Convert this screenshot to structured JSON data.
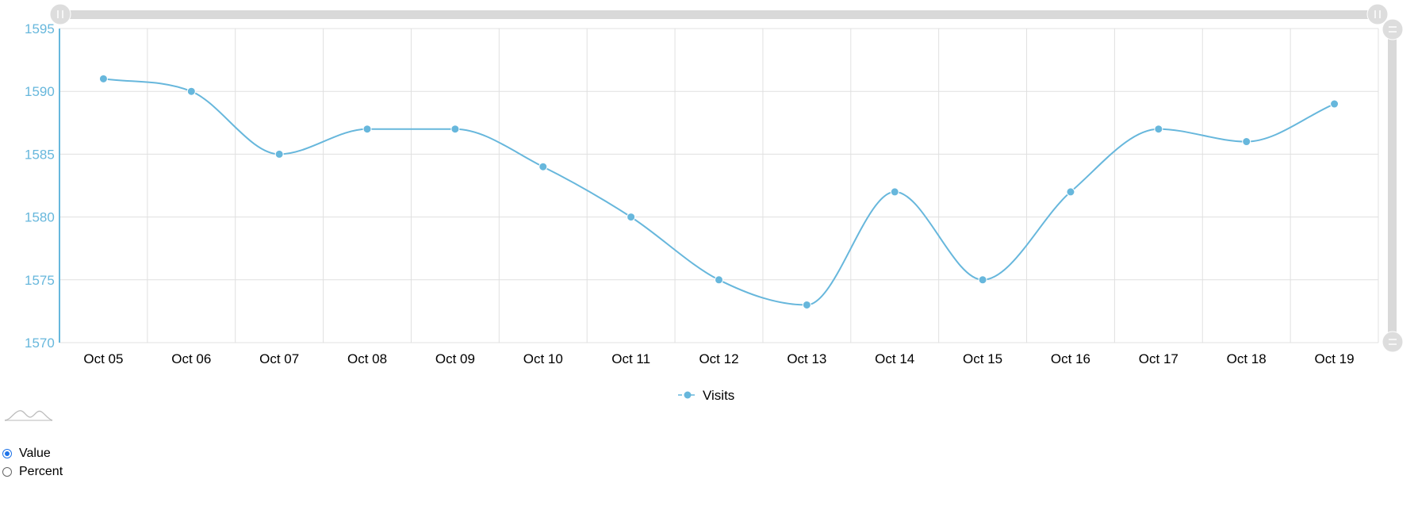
{
  "chart_data": {
    "type": "line",
    "categories": [
      "Oct 05",
      "Oct 06",
      "Oct 07",
      "Oct 08",
      "Oct 09",
      "Oct 10",
      "Oct 11",
      "Oct 12",
      "Oct 13",
      "Oct 14",
      "Oct 15",
      "Oct 16",
      "Oct 17",
      "Oct 18",
      "Oct 19"
    ],
    "series": [
      {
        "name": "Visits",
        "values": [
          1591,
          1590,
          1585,
          1587,
          1587,
          1584,
          1580,
          1575,
          1573,
          1582,
          1575,
          1582,
          1587,
          1586,
          1589
        ]
      }
    ],
    "ylim": [
      1570,
      1595
    ],
    "yticks": [
      "1570",
      "1575",
      "1580",
      "1585",
      "1590",
      "1595"
    ],
    "grid": true,
    "smoothed": true,
    "legend_position": "bottom-center",
    "colors": {
      "series": "#67b7dc",
      "axis_labels": "#67b7dc",
      "grid": "#e0e0e0",
      "scrollbar": "#d9d9d9",
      "grip": "#dddddd"
    }
  },
  "controls": {
    "options": [
      {
        "label": "Value",
        "checked": true
      },
      {
        "label": "Percent",
        "checked": false
      }
    ]
  }
}
